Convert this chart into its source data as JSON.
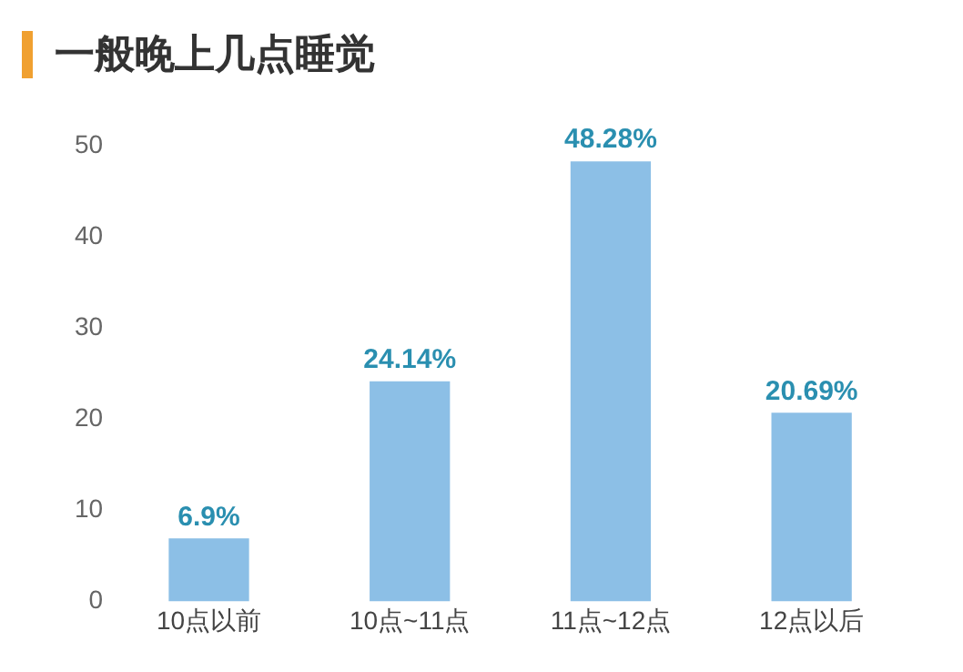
{
  "chart_data": {
    "type": "bar",
    "title": "一般晚上几点睡觉",
    "categories": [
      "10点以前",
      "10点~11点",
      "11点~12点",
      "12点以后"
    ],
    "values": [
      6.9,
      24.14,
      48.28,
      20.69
    ],
    "value_labels": [
      "6.9%",
      "24.14%",
      "48.28%",
      "20.69%"
    ],
    "color": "#8cbfe6",
    "ylim": [
      0,
      50
    ],
    "yticks": [
      0,
      10,
      20,
      30,
      40,
      50
    ],
    "grid": false,
    "legend": false
  }
}
